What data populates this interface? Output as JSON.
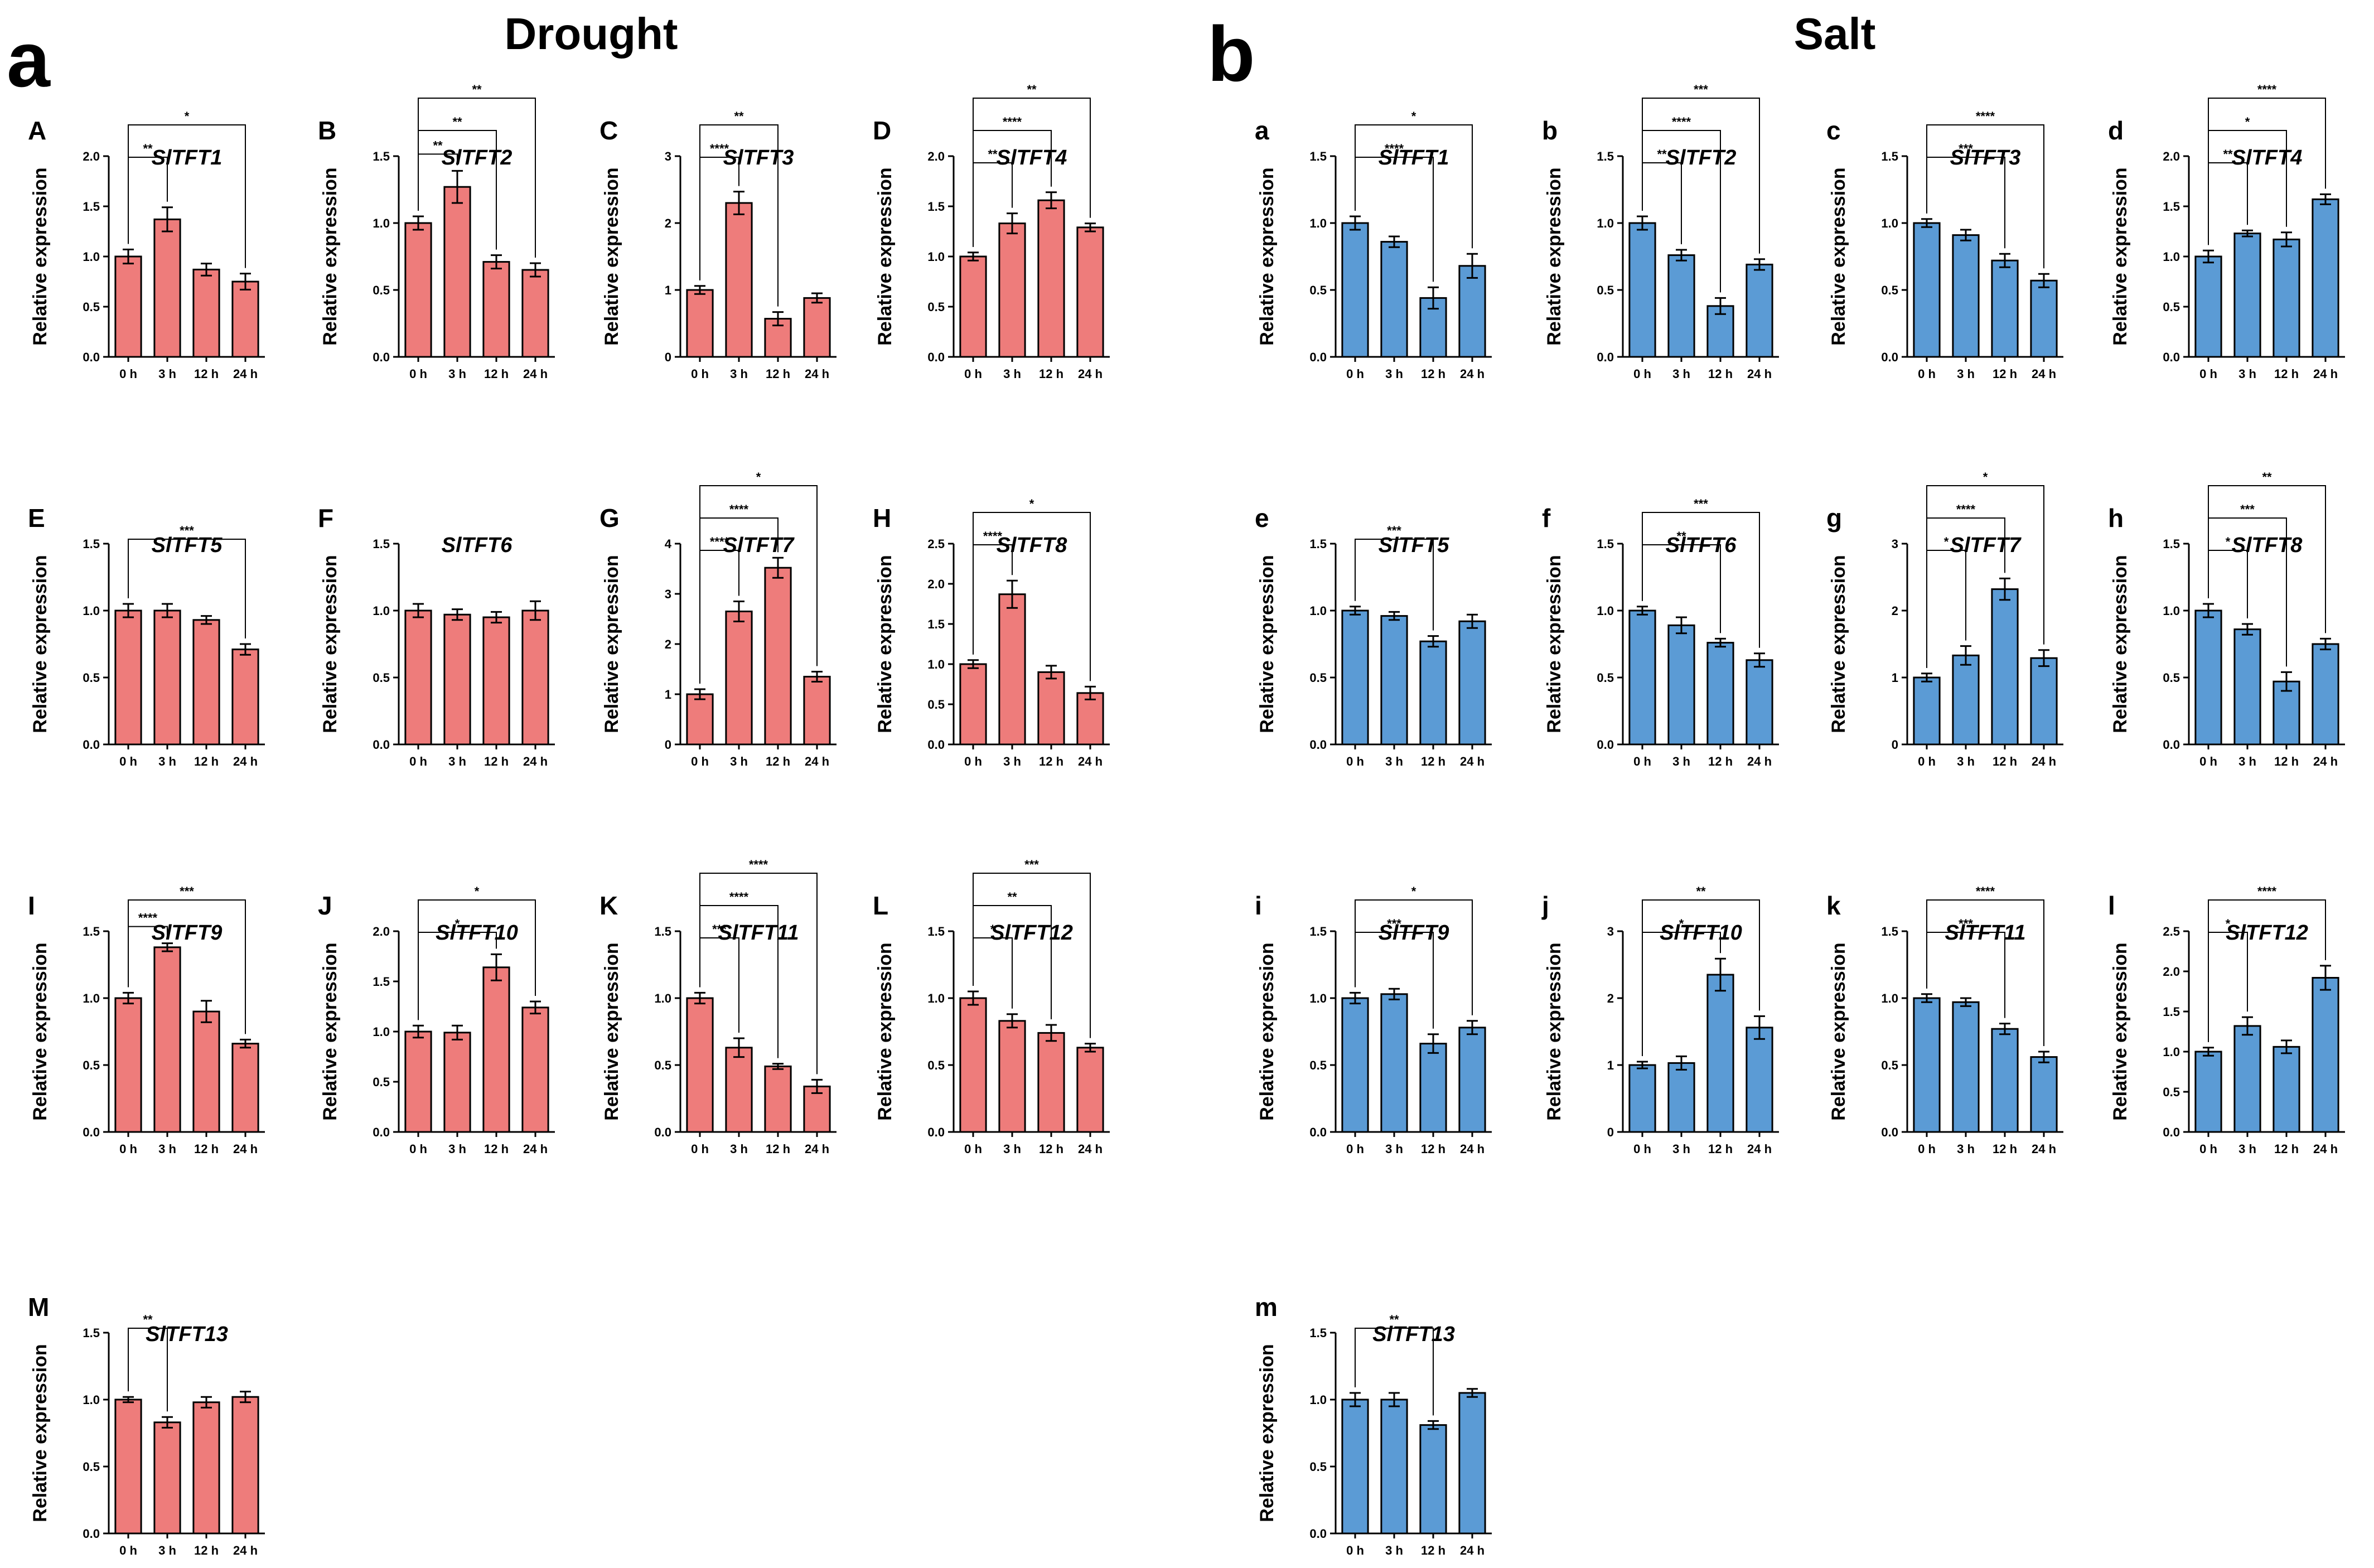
{
  "figure": {
    "section_a": {
      "letter": "a",
      "title": "Drought"
    },
    "section_b": {
      "letter": "b",
      "title": "Salt"
    },
    "colors": {
      "drought": "#ee7c7b",
      "salt": "#5b9bd5",
      "axis": "#000000"
    },
    "y_label": "Relative expression"
  },
  "chart_data": [
    {
      "panel": "A",
      "gene": "SlTFT1",
      "type": "bar",
      "group": "drought",
      "categories": [
        "0 h",
        "3 h",
        "12 h",
        "24 h"
      ],
      "values": [
        1.0,
        1.37,
        0.87,
        0.75
      ],
      "errors": [
        0.07,
        0.12,
        0.06,
        0.08
      ],
      "ylim": [
        0,
        2.0
      ],
      "yticks": [
        "0.0",
        "0.5",
        "1.0",
        "1.5",
        "2.0"
      ],
      "ylabel": "Relative expression",
      "sig": [
        {
          "from": 0,
          "to": 1,
          "label": "**"
        },
        {
          "from": 0,
          "to": 3,
          "label": "*"
        }
      ]
    },
    {
      "panel": "B",
      "gene": "SlTFT2",
      "type": "bar",
      "group": "drought",
      "categories": [
        "0 h",
        "3 h",
        "12 h",
        "24 h"
      ],
      "values": [
        1.0,
        1.27,
        0.71,
        0.65
      ],
      "errors": [
        0.05,
        0.12,
        0.05,
        0.05
      ],
      "ylim": [
        0,
        1.5
      ],
      "yticks": [
        "0.0",
        "0.5",
        "1.0",
        "1.5"
      ],
      "ylabel": "Relative expression",
      "sig": [
        {
          "from": 0,
          "to": 1,
          "label": "**"
        },
        {
          "from": 0,
          "to": 2,
          "label": "**"
        },
        {
          "from": 0,
          "to": 3,
          "label": "**"
        }
      ]
    },
    {
      "panel": "C",
      "gene": "SlTFT3",
      "type": "bar",
      "group": "drought",
      "categories": [
        "0 h",
        "3 h",
        "12 h",
        "24 h"
      ],
      "values": [
        1.0,
        2.3,
        0.57,
        0.88
      ],
      "errors": [
        0.06,
        0.17,
        0.1,
        0.07
      ],
      "ylim": [
        0,
        3
      ],
      "yticks": [
        "0",
        "1",
        "2",
        "3"
      ],
      "ylabel": "Relative expression",
      "sig": [
        {
          "from": 0,
          "to": 1,
          "label": "****"
        },
        {
          "from": 0,
          "to": 2,
          "label": "**"
        }
      ]
    },
    {
      "panel": "D",
      "gene": "SlTFT4",
      "type": "bar",
      "group": "drought",
      "categories": [
        "0 h",
        "3 h",
        "12 h",
        "24 h"
      ],
      "values": [
        1.0,
        1.33,
        1.56,
        1.29
      ],
      "errors": [
        0.04,
        0.1,
        0.08,
        0.04
      ],
      "ylim": [
        0,
        2.0
      ],
      "yticks": [
        "0.0",
        "0.5",
        "1.0",
        "1.5",
        "2.0"
      ],
      "ylabel": "Relative expression",
      "sig": [
        {
          "from": 0,
          "to": 1,
          "label": "**"
        },
        {
          "from": 0,
          "to": 2,
          "label": "****"
        },
        {
          "from": 0,
          "to": 3,
          "label": "**"
        }
      ]
    },
    {
      "panel": "E",
      "gene": "SlTFT5",
      "type": "bar",
      "group": "drought",
      "categories": [
        "0 h",
        "3 h",
        "12 h",
        "24 h"
      ],
      "values": [
        1.0,
        1.0,
        0.93,
        0.71
      ],
      "errors": [
        0.05,
        0.05,
        0.03,
        0.04
      ],
      "ylim": [
        0,
        1.5
      ],
      "yticks": [
        "0.0",
        "0.5",
        "1.0",
        "1.5"
      ],
      "ylabel": "Relative expression",
      "sig": [
        {
          "from": 0,
          "to": 3,
          "label": "***"
        }
      ]
    },
    {
      "panel": "F",
      "gene": "SlTFT6",
      "type": "bar",
      "group": "drought",
      "categories": [
        "0 h",
        "3 h",
        "12 h",
        "24 h"
      ],
      "values": [
        1.0,
        0.97,
        0.95,
        1.0
      ],
      "errors": [
        0.05,
        0.04,
        0.04,
        0.07
      ],
      "ylim": [
        0,
        1.5
      ],
      "yticks": [
        "0.0",
        "0.5",
        "1.0",
        "1.5"
      ],
      "ylabel": "Relative expression",
      "sig": []
    },
    {
      "panel": "G",
      "gene": "SlTFT7",
      "type": "bar",
      "group": "drought",
      "categories": [
        "0 h",
        "3 h",
        "12 h",
        "24 h"
      ],
      "values": [
        1.0,
        2.65,
        3.52,
        1.35
      ],
      "errors": [
        0.1,
        0.2,
        0.2,
        0.1
      ],
      "ylim": [
        0,
        4
      ],
      "yticks": [
        "0",
        "1",
        "2",
        "3",
        "4"
      ],
      "ylabel": "Relative expression",
      "sig": [
        {
          "from": 0,
          "to": 1,
          "label": "****"
        },
        {
          "from": 0,
          "to": 2,
          "label": "****"
        },
        {
          "from": 0,
          "to": 3,
          "label": "*"
        }
      ]
    },
    {
      "panel": "H",
      "gene": "SlTFT8",
      "type": "bar",
      "group": "drought",
      "categories": [
        "0 h",
        "3 h",
        "12 h",
        "24 h"
      ],
      "values": [
        1.0,
        1.87,
        0.9,
        0.64
      ],
      "errors": [
        0.05,
        0.17,
        0.08,
        0.08
      ],
      "ylim": [
        0,
        2.5
      ],
      "yticks": [
        "0.0",
        "0.5",
        "1.0",
        "1.5",
        "2.0",
        "2.5"
      ],
      "ylabel": "Relative expression",
      "sig": [
        {
          "from": 0,
          "to": 1,
          "label": "****"
        },
        {
          "from": 0,
          "to": 3,
          "label": "*"
        }
      ]
    },
    {
      "panel": "I",
      "gene": "SlTFT9",
      "type": "bar",
      "group": "drought",
      "categories": [
        "0 h",
        "3 h",
        "12 h",
        "24 h"
      ],
      "values": [
        1.0,
        1.38,
        0.9,
        0.66
      ],
      "errors": [
        0.04,
        0.03,
        0.08,
        0.03
      ],
      "ylim": [
        0,
        1.5
      ],
      "yticks": [
        "0.0",
        "0.5",
        "1.0",
        "1.5"
      ],
      "ylabel": "Relative expression",
      "sig": [
        {
          "from": 0,
          "to": 1,
          "label": "****"
        },
        {
          "from": 0,
          "to": 3,
          "label": "***"
        }
      ]
    },
    {
      "panel": "J",
      "gene": "SlTFT10",
      "type": "bar",
      "group": "drought",
      "categories": [
        "0 h",
        "3 h",
        "12 h",
        "24 h"
      ],
      "values": [
        1.0,
        0.99,
        1.64,
        1.24
      ],
      "errors": [
        0.06,
        0.07,
        0.13,
        0.06
      ],
      "ylim": [
        0,
        2.0
      ],
      "yticks": [
        "0.0",
        "0.5",
        "1.0",
        "1.5",
        "2.0"
      ],
      "ylabel": "Relative expression",
      "sig": [
        {
          "from": 0,
          "to": 2,
          "label": "*"
        },
        {
          "from": 0,
          "to": 3,
          "label": "*"
        }
      ]
    },
    {
      "panel": "K",
      "gene": "SlTFT11",
      "type": "bar",
      "group": "drought",
      "categories": [
        "0 h",
        "3 h",
        "12 h",
        "24 h"
      ],
      "values": [
        1.0,
        0.63,
        0.49,
        0.34
      ],
      "errors": [
        0.04,
        0.07,
        0.02,
        0.05
      ],
      "ylim": [
        0,
        1.5
      ],
      "yticks": [
        "0.0",
        "0.5",
        "1.0",
        "1.5"
      ],
      "ylabel": "Relative expression",
      "sig": [
        {
          "from": 0,
          "to": 1,
          "label": "***"
        },
        {
          "from": 0,
          "to": 2,
          "label": "****"
        },
        {
          "from": 0,
          "to": 3,
          "label": "****"
        }
      ]
    },
    {
      "panel": "L",
      "gene": "SlTFT12",
      "type": "bar",
      "group": "drought",
      "categories": [
        "0 h",
        "3 h",
        "12 h",
        "24 h"
      ],
      "values": [
        1.0,
        0.83,
        0.74,
        0.63
      ],
      "errors": [
        0.05,
        0.05,
        0.06,
        0.03
      ],
      "ylim": [
        0,
        1.5
      ],
      "yticks": [
        "0.0",
        "0.5",
        "1.0",
        "1.5"
      ],
      "ylabel": "Relative expression",
      "sig": [
        {
          "from": 0,
          "to": 1,
          "label": "*"
        },
        {
          "from": 0,
          "to": 2,
          "label": "**"
        },
        {
          "from": 0,
          "to": 3,
          "label": "***"
        }
      ]
    },
    {
      "panel": "M",
      "gene": "SlTFT13",
      "type": "bar",
      "group": "drought",
      "categories": [
        "0 h",
        "3 h",
        "12 h",
        "24 h"
      ],
      "values": [
        1.0,
        0.83,
        0.98,
        1.02
      ],
      "errors": [
        0.02,
        0.04,
        0.04,
        0.04
      ],
      "ylim": [
        0,
        1.5
      ],
      "yticks": [
        "0.0",
        "0.5",
        "1.0",
        "1.5"
      ],
      "ylabel": "Relative expression",
      "sig": [
        {
          "from": 0,
          "to": 1,
          "label": "**"
        }
      ]
    },
    {
      "panel": "a",
      "gene": "SlTFT1",
      "type": "bar",
      "group": "salt",
      "categories": [
        "0 h",
        "3 h",
        "12 h",
        "24 h"
      ],
      "values": [
        1.0,
        0.86,
        0.44,
        0.68
      ],
      "errors": [
        0.05,
        0.04,
        0.08,
        0.09
      ],
      "ylim": [
        0,
        1.5
      ],
      "yticks": [
        "0.0",
        "0.5",
        "1.0",
        "1.5"
      ],
      "ylabel": "Relative expression",
      "sig": [
        {
          "from": 0,
          "to": 2,
          "label": "****"
        },
        {
          "from": 0,
          "to": 3,
          "label": "*"
        }
      ]
    },
    {
      "panel": "b",
      "gene": "SlTFT2",
      "type": "bar",
      "group": "salt",
      "categories": [
        "0 h",
        "3 h",
        "12 h",
        "24 h"
      ],
      "values": [
        1.0,
        0.76,
        0.38,
        0.69
      ],
      "errors": [
        0.05,
        0.04,
        0.06,
        0.04
      ],
      "ylim": [
        0,
        1.5
      ],
      "yticks": [
        "0.0",
        "0.5",
        "1.0",
        "1.5"
      ],
      "ylabel": "Relative expression",
      "sig": [
        {
          "from": 0,
          "to": 1,
          "label": "**"
        },
        {
          "from": 0,
          "to": 2,
          "label": "****"
        },
        {
          "from": 0,
          "to": 3,
          "label": "***"
        }
      ]
    },
    {
      "panel": "c",
      "gene": "SlTFT3",
      "type": "bar",
      "group": "salt",
      "categories": [
        "0 h",
        "3 h",
        "12 h",
        "24 h"
      ],
      "values": [
        1.0,
        0.91,
        0.72,
        0.57
      ],
      "errors": [
        0.03,
        0.04,
        0.05,
        0.05
      ],
      "ylim": [
        0,
        1.5
      ],
      "yticks": [
        "0.0",
        "0.5",
        "1.0",
        "1.5"
      ],
      "ylabel": "Relative expression",
      "sig": [
        {
          "from": 0,
          "to": 2,
          "label": "***"
        },
        {
          "from": 0,
          "to": 3,
          "label": "****"
        }
      ]
    },
    {
      "panel": "d",
      "gene": "SlTFT4",
      "type": "bar",
      "group": "salt",
      "categories": [
        "0 h",
        "3 h",
        "12 h",
        "24 h"
      ],
      "values": [
        1.0,
        1.23,
        1.17,
        1.57
      ],
      "errors": [
        0.06,
        0.03,
        0.07,
        0.05
      ],
      "ylim": [
        0,
        2.0
      ],
      "yticks": [
        "0.0",
        "0.5",
        "1.0",
        "1.5",
        "2.0"
      ],
      "ylabel": "Relative expression",
      "sig": [
        {
          "from": 0,
          "to": 1,
          "label": "**"
        },
        {
          "from": 0,
          "to": 2,
          "label": "*"
        },
        {
          "from": 0,
          "to": 3,
          "label": "****"
        }
      ]
    },
    {
      "panel": "e",
      "gene": "SlTFT5",
      "type": "bar",
      "group": "salt",
      "categories": [
        "0 h",
        "3 h",
        "12 h",
        "24 h"
      ],
      "values": [
        1.0,
        0.96,
        0.77,
        0.92
      ],
      "errors": [
        0.03,
        0.03,
        0.04,
        0.05
      ],
      "ylim": [
        0,
        1.5
      ],
      "yticks": [
        "0.0",
        "0.5",
        "1.0",
        "1.5"
      ],
      "ylabel": "Relative expression",
      "sig": [
        {
          "from": 0,
          "to": 2,
          "label": "***"
        }
      ]
    },
    {
      "panel": "f",
      "gene": "SlTFT6",
      "type": "bar",
      "group": "salt",
      "categories": [
        "0 h",
        "3 h",
        "12 h",
        "24 h"
      ],
      "values": [
        1.0,
        0.89,
        0.76,
        0.63
      ],
      "errors": [
        0.03,
        0.06,
        0.03,
        0.05
      ],
      "ylim": [
        0,
        1.5
      ],
      "yticks": [
        "0.0",
        "0.5",
        "1.0",
        "1.5"
      ],
      "ylabel": "Relative expression",
      "sig": [
        {
          "from": 0,
          "to": 2,
          "label": "**"
        },
        {
          "from": 0,
          "to": 3,
          "label": "***"
        }
      ]
    },
    {
      "panel": "g",
      "gene": "SlTFT7",
      "type": "bar",
      "group": "salt",
      "categories": [
        "0 h",
        "3 h",
        "12 h",
        "24 h"
      ],
      "values": [
        1.0,
        1.33,
        2.32,
        1.29
      ],
      "errors": [
        0.06,
        0.14,
        0.16,
        0.12
      ],
      "ylim": [
        0,
        3
      ],
      "yticks": [
        "0",
        "1",
        "2",
        "3"
      ],
      "ylabel": "Relative expression",
      "sig": [
        {
          "from": 0,
          "to": 1,
          "label": "*"
        },
        {
          "from": 0,
          "to": 2,
          "label": "****"
        },
        {
          "from": 0,
          "to": 3,
          "label": "*"
        }
      ]
    },
    {
      "panel": "h",
      "gene": "SlTFT8",
      "type": "bar",
      "group": "salt",
      "categories": [
        "0 h",
        "3 h",
        "12 h",
        "24 h"
      ],
      "values": [
        1.0,
        0.86,
        0.47,
        0.75
      ],
      "errors": [
        0.05,
        0.04,
        0.07,
        0.04
      ],
      "ylim": [
        0,
        1.5
      ],
      "yticks": [
        "0.0",
        "0.5",
        "1.0",
        "1.5"
      ],
      "ylabel": "Relative expression",
      "sig": [
        {
          "from": 0,
          "to": 1,
          "label": "*"
        },
        {
          "from": 0,
          "to": 2,
          "label": "***"
        },
        {
          "from": 0,
          "to": 3,
          "label": "**"
        }
      ]
    },
    {
      "panel": "i",
      "gene": "SlTFT9",
      "type": "bar",
      "group": "salt",
      "categories": [
        "0 h",
        "3 h",
        "12 h",
        "24 h"
      ],
      "values": [
        1.0,
        1.03,
        0.66,
        0.78
      ],
      "errors": [
        0.04,
        0.04,
        0.07,
        0.05
      ],
      "ylim": [
        0,
        1.5
      ],
      "yticks": [
        "0.0",
        "0.5",
        "1.0",
        "1.5"
      ],
      "ylabel": "Relative expression",
      "sig": [
        {
          "from": 0,
          "to": 2,
          "label": "***"
        },
        {
          "from": 0,
          "to": 3,
          "label": "*"
        }
      ]
    },
    {
      "panel": "j",
      "gene": "SlTFT10",
      "type": "bar",
      "group": "salt",
      "categories": [
        "0 h",
        "3 h",
        "12 h",
        "24 h"
      ],
      "values": [
        1.0,
        1.03,
        2.35,
        1.56
      ],
      "errors": [
        0.05,
        0.1,
        0.24,
        0.17
      ],
      "ylim": [
        0,
        3
      ],
      "yticks": [
        "0",
        "1",
        "2",
        "3"
      ],
      "ylabel": "Relative expression",
      "sig": [
        {
          "from": 0,
          "to": 2,
          "label": "*"
        },
        {
          "from": 0,
          "to": 3,
          "label": "**"
        }
      ]
    },
    {
      "panel": "k",
      "gene": "SlTFT11",
      "type": "bar",
      "group": "salt",
      "categories": [
        "0 h",
        "3 h",
        "12 h",
        "24 h"
      ],
      "values": [
        1.0,
        0.97,
        0.77,
        0.56
      ],
      "errors": [
        0.03,
        0.03,
        0.04,
        0.04
      ],
      "ylim": [
        0,
        1.5
      ],
      "yticks": [
        "0.0",
        "0.5",
        "1.0",
        "1.5"
      ],
      "ylabel": "Relative expression",
      "sig": [
        {
          "from": 0,
          "to": 2,
          "label": "***"
        },
        {
          "from": 0,
          "to": 3,
          "label": "****"
        }
      ]
    },
    {
      "panel": "l",
      "gene": "SlTFT12",
      "type": "bar",
      "group": "salt",
      "categories": [
        "0 h",
        "3 h",
        "12 h",
        "24 h"
      ],
      "values": [
        1.0,
        1.32,
        1.06,
        1.92
      ],
      "errors": [
        0.05,
        0.11,
        0.08,
        0.15
      ],
      "ylim": [
        0,
        2.5
      ],
      "yticks": [
        "0.0",
        "0.5",
        "1.0",
        "1.5",
        "2.0",
        "2.5"
      ],
      "ylabel": "Relative expression",
      "sig": [
        {
          "from": 0,
          "to": 1,
          "label": "*"
        },
        {
          "from": 0,
          "to": 3,
          "label": "****"
        }
      ]
    },
    {
      "panel": "m",
      "gene": "SlTFT13",
      "type": "bar",
      "group": "salt",
      "categories": [
        "0 h",
        "3 h",
        "12 h",
        "24 h"
      ],
      "values": [
        1.0,
        1.0,
        0.81,
        1.05
      ],
      "errors": [
        0.05,
        0.05,
        0.03,
        0.03
      ],
      "ylim": [
        0,
        1.5
      ],
      "yticks": [
        "0.0",
        "0.5",
        "1.0",
        "1.5"
      ],
      "ylabel": "Relative expression",
      "sig": [
        {
          "from": 0,
          "to": 2,
          "label": "**"
        }
      ]
    }
  ]
}
